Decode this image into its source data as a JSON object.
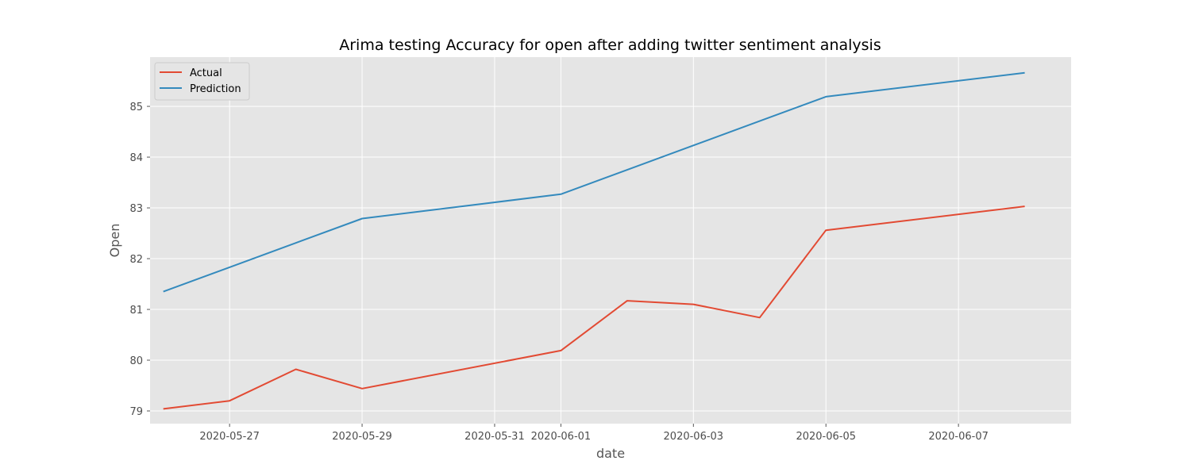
{
  "chart_data": {
    "type": "line",
    "title": "Arima testing Accuracy for open after adding twitter sentiment analysis",
    "xlabel": "date",
    "ylabel": "Open",
    "x": [
      "2020-05-26",
      "2020-05-27",
      "2020-05-28",
      "2020-05-29",
      "2020-06-01",
      "2020-06-02",
      "2020-06-03",
      "2020-06-04",
      "2020-06-05",
      "2020-06-08"
    ],
    "xlim": [
      "2020-05-25T19:12",
      "2020-06-08T16:48"
    ],
    "ylim": [
      78.75,
      85.97
    ],
    "x_ticks": [
      "2020-05-27",
      "2020-05-29",
      "2020-05-31",
      "2020-06-01",
      "2020-06-03",
      "2020-06-05",
      "2020-06-07"
    ],
    "y_ticks": [
      79,
      80,
      81,
      82,
      83,
      84,
      85
    ],
    "grid": true,
    "legend_position": "upper-left",
    "series": [
      {
        "name": "Actual",
        "color": "#E24A33",
        "values": [
          79.04,
          79.2,
          79.82,
          79.44,
          80.19,
          81.17,
          81.1,
          80.84,
          82.56,
          83.03
        ]
      },
      {
        "name": "Prediction",
        "color": "#348ABD",
        "values": [
          81.35,
          81.83,
          82.31,
          82.79,
          83.27,
          83.75,
          84.23,
          84.71,
          85.19,
          85.66
        ]
      }
    ]
  }
}
